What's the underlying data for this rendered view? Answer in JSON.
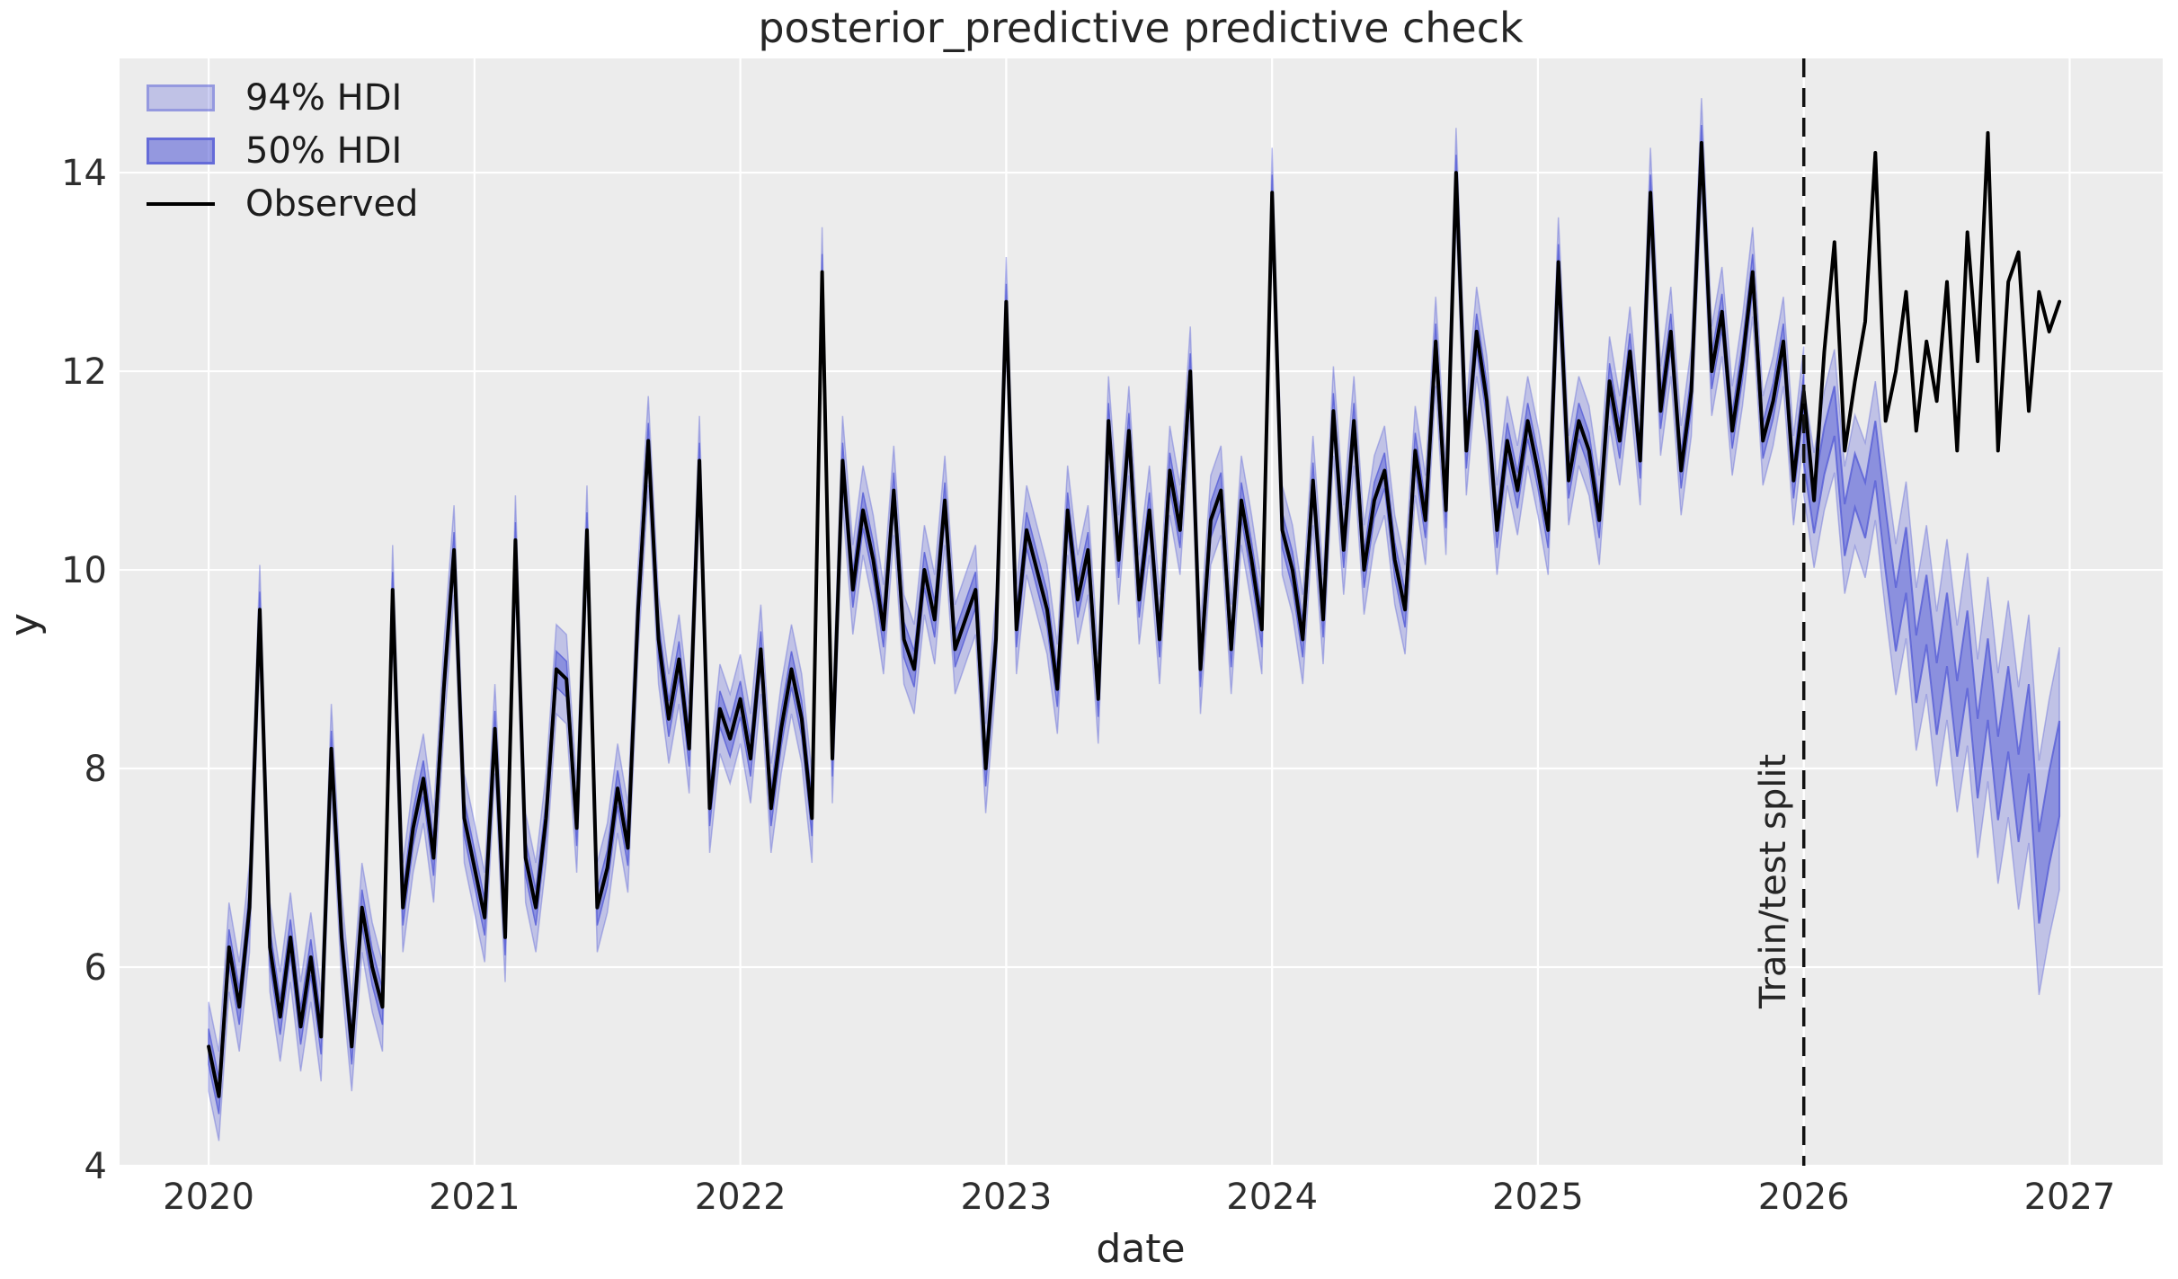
{
  "figure": {
    "title": "posterior_predictive predictive check",
    "xlabel": "date",
    "ylabel": "y"
  },
  "legend": {
    "hdi94_label": "94% HDI",
    "hdi50_label": "50% HDI",
    "observed_label": "Observed"
  },
  "chart_data": {
    "type": "line",
    "title": "posterior_predictive predictive check",
    "xlabel": "date",
    "ylabel": "y",
    "x_ticks": [
      2020,
      2021,
      2022,
      2023,
      2024,
      2025,
      2026,
      2027
    ],
    "y_ticks": [
      4,
      6,
      8,
      10,
      12,
      14
    ],
    "xlim": [
      2019.665,
      2027.35
    ],
    "ylim": [
      4,
      15.15
    ],
    "grid": true,
    "legend_position": "upper left",
    "legend_entries": [
      "94% HDI",
      "50% HDI",
      "Observed"
    ],
    "split_line": {
      "x": 2026.0,
      "label": "Train/test split",
      "style": "dashed"
    },
    "series": {
      "x_start": 2020.0,
      "x_step": 0.0384615,
      "observed": [
        5.2,
        4.7,
        6.2,
        5.6,
        6.6,
        9.6,
        6.2,
        5.5,
        6.3,
        5.4,
        6.1,
        5.3,
        8.2,
        6.3,
        5.2,
        6.6,
        6.0,
        5.6,
        9.8,
        6.6,
        7.4,
        7.9,
        7.1,
        8.8,
        10.2,
        7.5,
        7.0,
        6.5,
        8.4,
        6.3,
        10.3,
        7.1,
        6.6,
        7.5,
        9.0,
        8.9,
        7.4,
        10.4,
        6.6,
        7.0,
        7.8,
        7.2,
        9.6,
        11.3,
        9.3,
        8.5,
        9.1,
        8.2,
        11.1,
        7.6,
        8.6,
        8.3,
        8.7,
        8.1,
        9.2,
        7.6,
        8.4,
        9.0,
        8.5,
        7.5,
        13.0,
        8.1,
        11.1,
        9.8,
        10.6,
        10.1,
        9.4,
        10.8,
        9.3,
        9.0,
        10.0,
        9.5,
        10.7,
        9.2,
        9.5,
        9.8,
        8.0,
        9.3,
        12.7,
        9.4,
        10.4,
        10.0,
        9.6,
        8.8,
        10.6,
        9.7,
        10.2,
        8.7,
        11.5,
        10.1,
        11.4,
        9.7,
        10.6,
        9.3,
        11.0,
        10.4,
        12.0,
        9.0,
        10.5,
        10.8,
        9.2,
        10.7,
        10.1,
        9.4,
        13.8,
        10.4,
        10.0,
        9.3,
        10.9,
        9.5,
        11.6,
        10.2,
        11.5,
        10.0,
        10.7,
        11.0,
        10.1,
        9.6,
        11.2,
        10.5,
        12.3,
        10.6,
        14.0,
        11.2,
        12.4,
        11.7,
        10.4,
        11.3,
        10.8,
        11.5,
        11.0,
        10.4,
        13.1,
        10.9,
        11.5,
        11.2,
        10.5,
        11.9,
        11.3,
        12.2,
        11.1,
        13.8,
        11.6,
        12.4,
        11.0,
        11.8,
        14.3,
        12.0,
        12.6,
        11.4,
        12.1,
        13.0,
        11.3,
        11.7,
        12.3,
        10.9,
        11.8,
        10.7,
        12.2,
        13.3,
        11.2,
        11.9,
        12.5,
        14.2,
        11.5,
        12.0,
        12.8,
        11.4,
        12.3,
        11.7,
        12.9,
        11.2,
        13.4,
        12.1,
        14.4,
        11.2,
        12.9,
        13.2,
        11.6,
        12.8,
        12.4,
        12.7
      ],
      "train_end_index": 156,
      "train_hdi94_halfwidth": 0.45,
      "train_hdi50_halfwidth": 0.18,
      "forecast": {
        "start_index": 156,
        "mean": [
          11.3,
          10.6,
          11.2,
          11.6,
          10.4,
          10.9,
          10.6,
          11.2,
          10.3,
          9.5,
          10.1,
          9.0,
          9.6,
          8.7,
          9.4,
          8.5,
          9.2,
          8.1,
          8.9,
          7.9,
          8.6,
          7.7,
          8.4,
          6.9,
          7.5,
          8.0
        ],
        "hdi94_halfwidth": [
          0.55,
          0.58,
          0.6,
          0.62,
          0.64,
          0.66,
          0.68,
          0.7,
          0.73,
          0.76,
          0.79,
          0.82,
          0.85,
          0.88,
          0.91,
          0.94,
          0.97,
          1.0,
          1.03,
          1.06,
          1.09,
          1.12,
          1.15,
          1.18,
          1.2,
          1.22
        ],
        "hdi50_halfwidth": [
          0.22,
          0.23,
          0.24,
          0.25,
          0.26,
          0.27,
          0.28,
          0.3,
          0.31,
          0.32,
          0.33,
          0.34,
          0.35,
          0.36,
          0.37,
          0.38,
          0.39,
          0.4,
          0.41,
          0.42,
          0.43,
          0.44,
          0.45,
          0.46,
          0.47,
          0.48
        ]
      }
    },
    "colors": {
      "axes_background": "#ececec",
      "grid": "#ffffff",
      "observed": "#000000",
      "hdi_base": "#5a61d7",
      "hdi94_fill": "rgba(90,97,215,0.30)",
      "hdi94_edge": "rgba(90,97,215,0.40)",
      "hdi50_fill": "rgba(90,97,215,0.52)",
      "hdi50_edge": "rgba(90,97,215,0.85)",
      "split_line": "#111111",
      "tick_label": "#2e2e2e"
    }
  }
}
